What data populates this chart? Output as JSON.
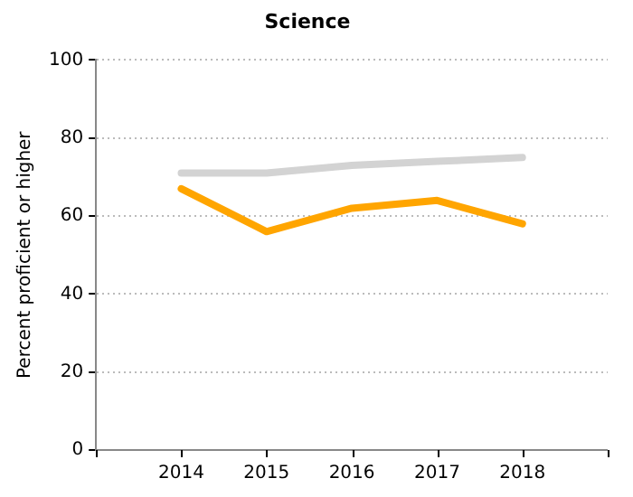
{
  "chart_data": {
    "type": "line",
    "title": "Science",
    "ylabel": "Percent proficient or higher",
    "x": [
      2014,
      2015,
      2016,
      2017,
      2018
    ],
    "series": [
      {
        "color": "#d3d3d3",
        "values": [
          71,
          71,
          73,
          74,
          75
        ]
      },
      {
        "color": "#ffa500",
        "values": [
          67,
          56,
          62,
          64,
          58
        ]
      }
    ],
    "xlim": [
      2013,
      2019
    ],
    "xticks": [
      {
        "value": 2013,
        "label": null
      },
      2014,
      2015,
      2016,
      2017,
      2018,
      {
        "value": 2019,
        "label": null
      }
    ],
    "ylim": [
      0,
      100
    ],
    "yticks": [
      0,
      20,
      40,
      60,
      80,
      100
    ],
    "grid": "y",
    "legend": false,
    "marker": "none"
  }
}
